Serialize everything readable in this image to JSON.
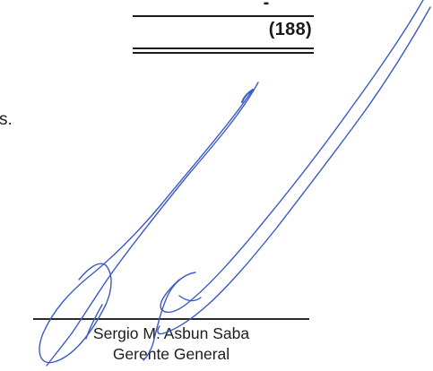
{
  "figures": {
    "dash": "-",
    "total": "(188)"
  },
  "trailing_text": "s.",
  "signatory": {
    "name": "Sergio M. Asbun Saba",
    "title": "Gerente General"
  },
  "colors": {
    "ink": "#1a1a1a",
    "signature_ink": "#3b5bc4"
  }
}
